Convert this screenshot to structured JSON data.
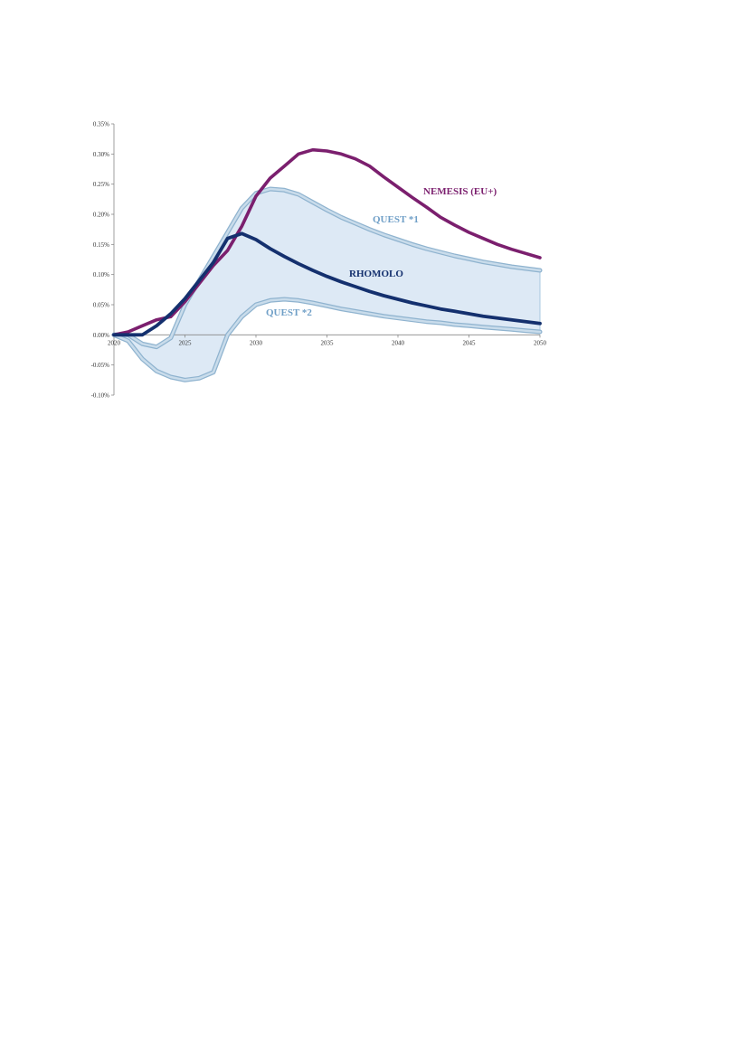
{
  "chart_data": {
    "type": "line",
    "title": "",
    "xlabel": "",
    "ylabel": "",
    "xlim": [
      2020,
      2050
    ],
    "ylim": [
      -0.001,
      0.0035
    ],
    "x_ticks": [
      "2020",
      "2025",
      "2030",
      "2035",
      "2040",
      "2045",
      "2050"
    ],
    "y_ticks": [
      "0.35%",
      "0.30%",
      "0.25%",
      "0.20%",
      "0.15%",
      "0.10%",
      "0.05%",
      "0.00%",
      "-0.05%",
      "-0.10%"
    ],
    "x": [
      2020,
      2021,
      2022,
      2023,
      2024,
      2025,
      2026,
      2027,
      2028,
      2029,
      2030,
      2031,
      2032,
      2033,
      2034,
      2035,
      2036,
      2037,
      2038,
      2039,
      2040,
      2041,
      2042,
      2043,
      2044,
      2045,
      2046,
      2047,
      2048,
      2049,
      2050
    ],
    "band": {
      "fill_color": "#dde9f5",
      "edge_color": "#a9c8e0"
    },
    "series": [
      {
        "name": "NEMESIS (EU+)",
        "color": "#7b1f6e",
        "values": [
          0.0,
          5e-05,
          0.00015,
          0.00025,
          0.0003,
          0.00055,
          0.00085,
          0.00115,
          0.0014,
          0.0018,
          0.0023,
          0.0026,
          0.0028,
          0.003,
          0.00307,
          0.00305,
          0.003,
          0.00292,
          0.0028,
          0.00262,
          0.00245,
          0.00228,
          0.00212,
          0.00195,
          0.00182,
          0.0017,
          0.0016,
          0.0015,
          0.00142,
          0.00135,
          0.00128
        ]
      },
      {
        "name": "RHOMOLO",
        "color": "#14306e",
        "values": [
          0.0,
          0.0,
          0.0,
          0.00015,
          0.00035,
          0.0006,
          0.0009,
          0.0012,
          0.0016,
          0.00168,
          0.00158,
          0.00143,
          0.0013,
          0.00118,
          0.00107,
          0.00097,
          0.00088,
          0.0008,
          0.00072,
          0.00065,
          0.00059,
          0.00053,
          0.00048,
          0.00043,
          0.00039,
          0.00035,
          0.00031,
          0.00028,
          0.00025,
          0.00022,
          0.00019
        ]
      },
      {
        "name": "QUEST *1",
        "color": "#a9c8e0",
        "values": [
          0.0,
          0.0,
          -0.00015,
          -0.0002,
          -5e-05,
          0.0005,
          0.0009,
          0.0013,
          0.0017,
          0.0021,
          0.00235,
          0.00242,
          0.0024,
          0.00233,
          0.0022,
          0.00207,
          0.00195,
          0.00185,
          0.00175,
          0.00166,
          0.00158,
          0.0015,
          0.00143,
          0.00137,
          0.00131,
          0.00126,
          0.00121,
          0.00117,
          0.00113,
          0.0011,
          0.00107
        ]
      },
      {
        "name": "QUEST *2",
        "color": "#a9c8e0",
        "values": [
          0.0,
          -0.0001,
          -0.0004,
          -0.0006,
          -0.0007,
          -0.00075,
          -0.00072,
          -0.00062,
          0.0,
          0.0003,
          0.0005,
          0.00057,
          0.00059,
          0.00057,
          0.00053,
          0.00048,
          0.00043,
          0.00039,
          0.00035,
          0.00031,
          0.00028,
          0.00025,
          0.00022,
          0.0002,
          0.00017,
          0.00015,
          0.00013,
          0.00011,
          9e-05,
          7e-05,
          5e-05
        ]
      }
    ]
  }
}
